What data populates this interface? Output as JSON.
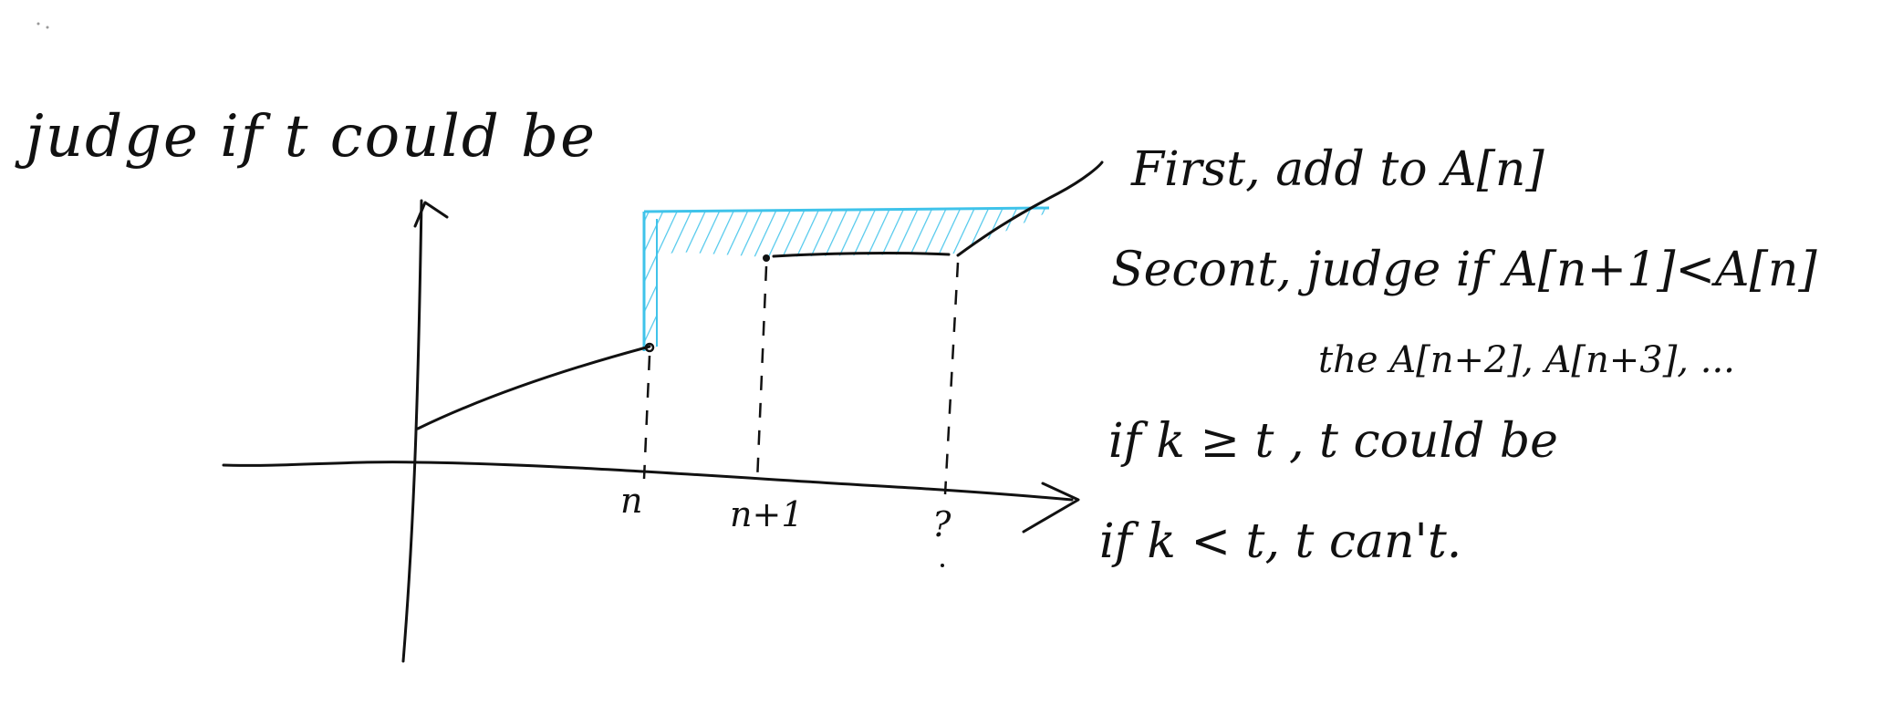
{
  "title": "judge if t could be",
  "axis_labels": {
    "n": "n",
    "n_plus_1": "n+1",
    "unknown": "?"
  },
  "notes": {
    "first": "First, add to A[n]",
    "second": "Secont, judge if A[n+1]<A[n]",
    "then": "the A[n+2], A[n+3], ...",
    "if_greater": "if k ≥ t , t could be",
    "if_less": "if k < t, t can't."
  },
  "colors": {
    "ink": "#111111",
    "highlight": "#3fc3ea"
  }
}
